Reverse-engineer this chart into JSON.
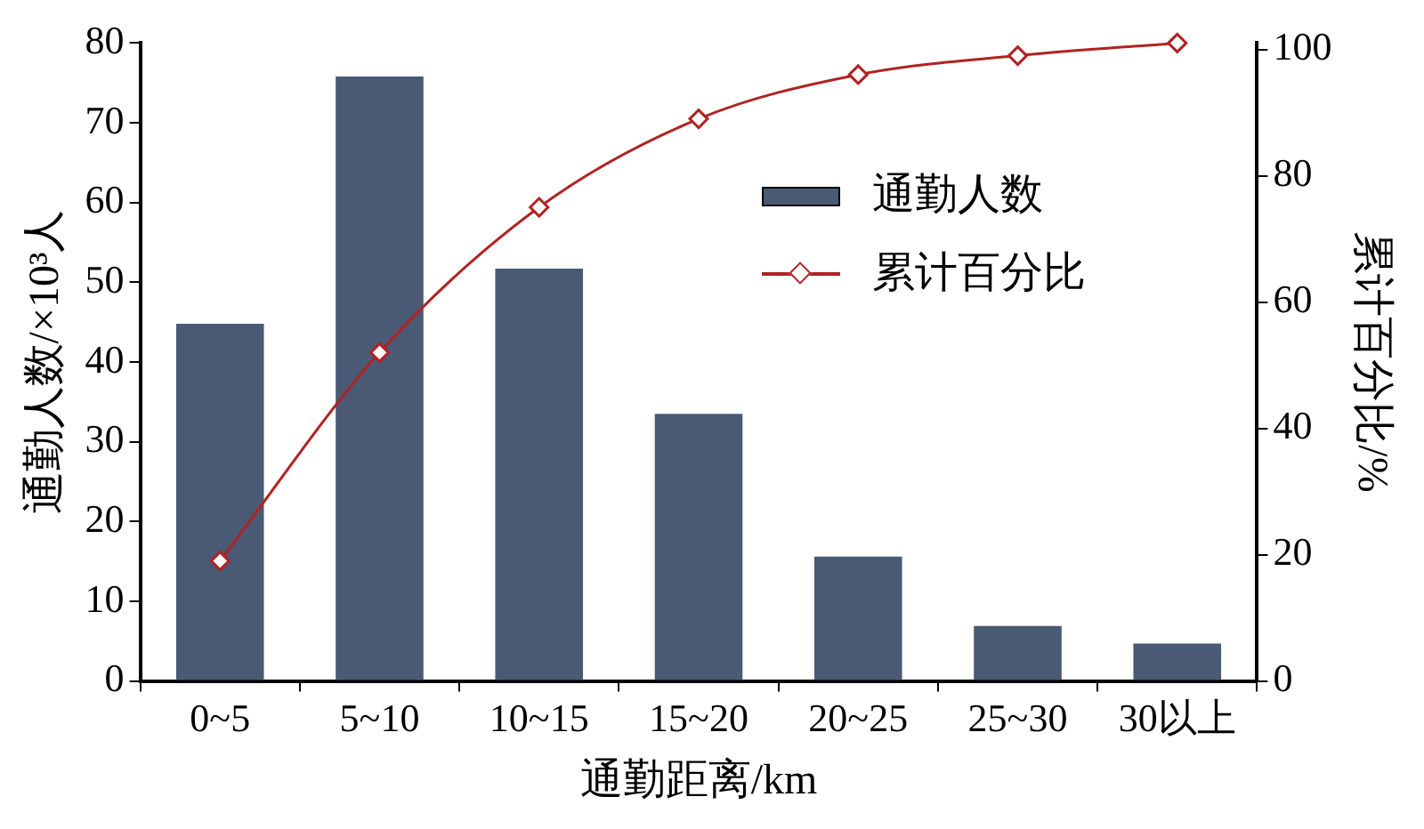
{
  "chart_data": {
    "type": "bar",
    "xlabel": "通勤距离/km",
    "ylabel": "通勤人数/×10³人",
    "y2label": "累计百分比/%",
    "categories": [
      "0~5",
      "5~10",
      "10~15",
      "15~20",
      "20~25",
      "25~30",
      "30以上"
    ],
    "series": [
      {
        "name": "通勤人数",
        "color": "#4a5a75",
        "values": [
          44.8,
          75.8,
          51.7,
          33.5,
          15.6,
          6.9,
          4.7
        ]
      },
      {
        "name": "累计百分比",
        "type": "line",
        "axis": "y2",
        "color": "#b22222",
        "values": [
          19,
          52,
          75,
          89,
          96,
          99,
          101
        ]
      }
    ],
    "ylim": [
      0,
      80
    ],
    "yticks": [
      0,
      10,
      20,
      30,
      40,
      50,
      60,
      70,
      80
    ],
    "y2lim": [
      0,
      101
    ],
    "y2ticks": [
      0,
      20,
      40,
      60,
      80,
      100
    ],
    "grid": false,
    "legend": "right",
    "marker": "diamond",
    "line_style": "solid"
  }
}
